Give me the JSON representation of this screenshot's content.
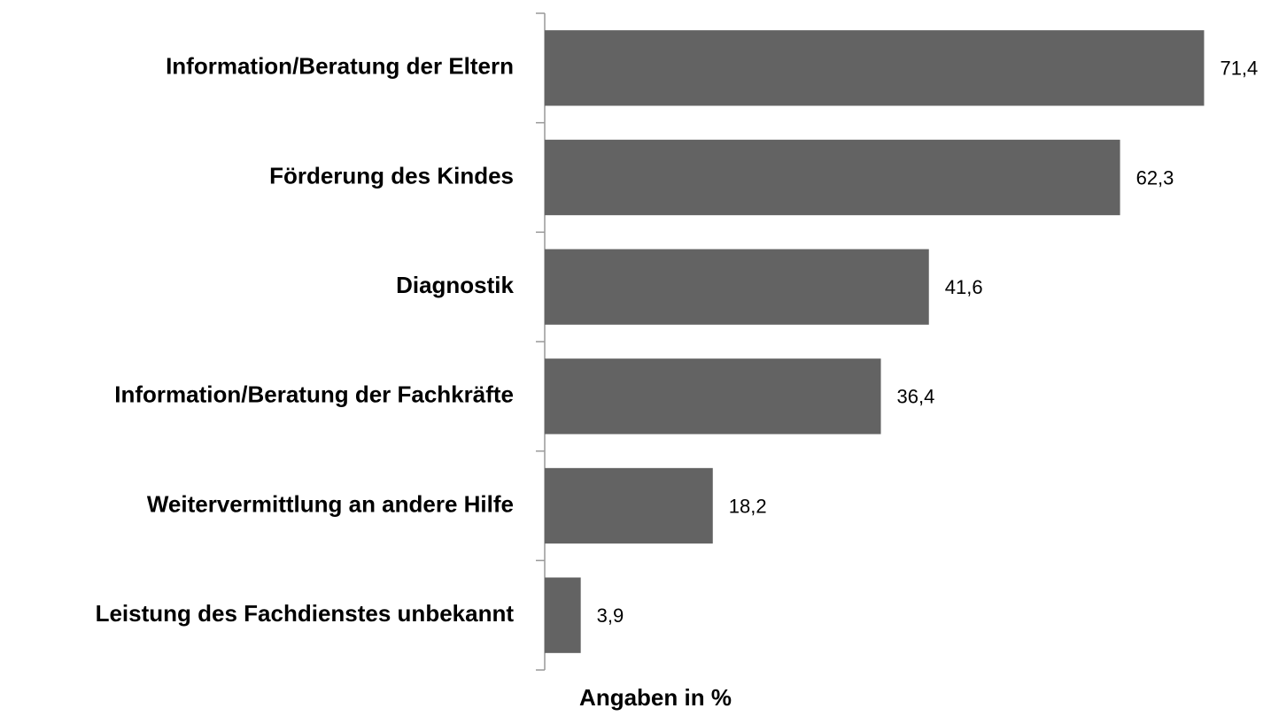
{
  "chart_data": {
    "type": "bar",
    "orientation": "horizontal",
    "x_label": "Angaben in %",
    "categories": [
      "Information/Beratung der Eltern",
      "Förderung des Kindes",
      "Diagnostik",
      "Information/Beratung der Fachkräfte",
      "Weitervermittlung an andere Hilfe",
      "Leistung des Fachdienstes unbekannt"
    ],
    "values": [
      71.4,
      62.3,
      41.6,
      36.4,
      18.2,
      3.9
    ],
    "value_labels": [
      "71,4",
      "62,3",
      "41,6",
      "36,4",
      "18,2",
      "3,9"
    ],
    "color": "#636363",
    "xlim": [
      0,
      75
    ]
  }
}
